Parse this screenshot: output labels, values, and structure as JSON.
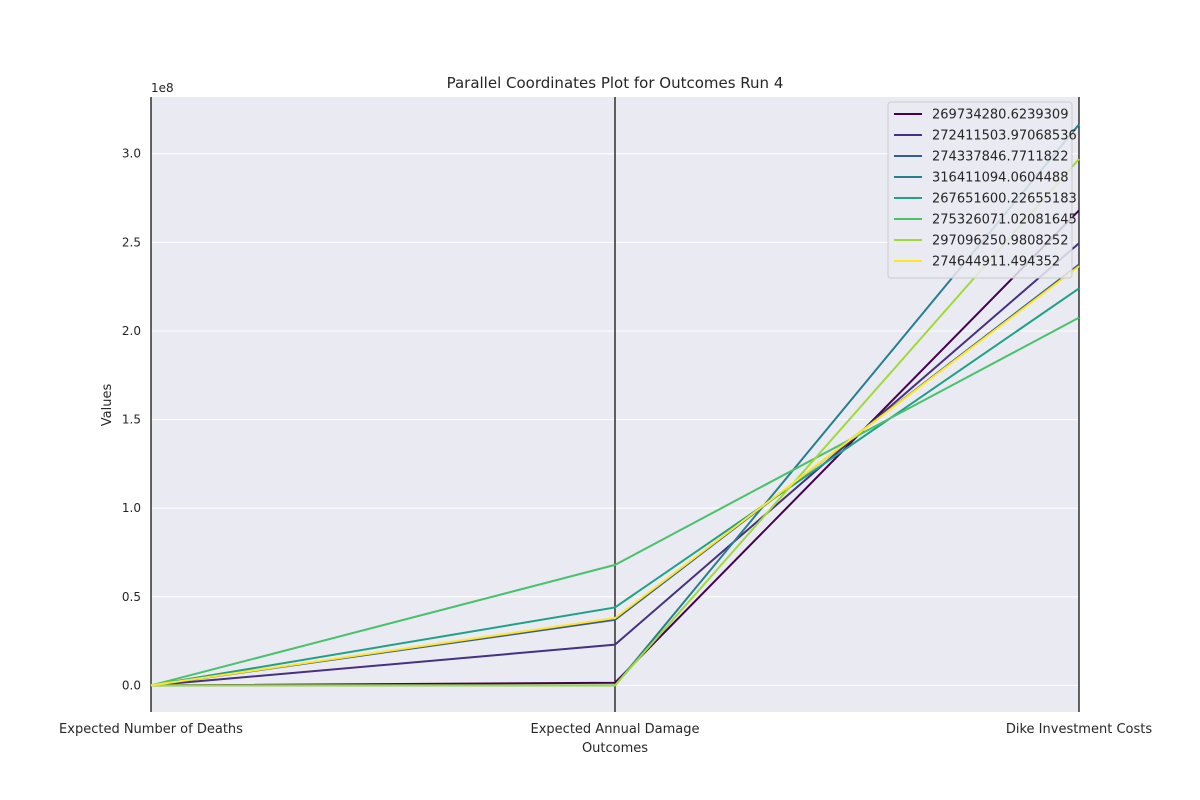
{
  "chart_data": {
    "type": "parallel_coordinates",
    "title": "Parallel Coordinates Plot for Outcomes Run 4",
    "xlabel": "Outcomes",
    "ylabel": "Values",
    "offset_text": "1e8",
    "categories": [
      "Expected Number of Deaths",
      "Expected Annual Damage",
      "Dike Investment Costs"
    ],
    "ylim": [
      -0.15,
      3.32
    ],
    "yticks": [
      0.0,
      0.5,
      1.0,
      1.5,
      2.0,
      2.5,
      3.0
    ],
    "ytick_labels": [
      "0.0",
      "0.5",
      "1.0",
      "1.5",
      "2.0",
      "2.5",
      "3.0"
    ],
    "grid": true,
    "legend_position": "top-right",
    "series": [
      {
        "name": "269734280.6239309",
        "color": "#440154",
        "values": [
          0.0,
          0.015,
          2.68
        ]
      },
      {
        "name": "272411503.97068536",
        "color": "#46327e",
        "values": [
          0.0,
          0.23,
          2.495
        ]
      },
      {
        "name": "274337846.7711822",
        "color": "#365c8d",
        "values": [
          0.0,
          0.37,
          2.375
        ]
      },
      {
        "name": "316411094.0604488",
        "color": "#277f8e",
        "values": [
          0.0,
          0.0,
          3.165
        ]
      },
      {
        "name": "267651600.22655183",
        "color": "#1fa187",
        "values": [
          0.0,
          0.44,
          2.24
        ]
      },
      {
        "name": "275326071.02081645",
        "color": "#4ac16d",
        "values": [
          0.0,
          0.68,
          2.075
        ]
      },
      {
        "name": "297096250.9808252",
        "color": "#a0da39",
        "values": [
          0.0,
          0.0,
          2.97
        ]
      },
      {
        "name": "274644911.494352",
        "color": "#fde725",
        "values": [
          0.0,
          0.38,
          2.365
        ]
      }
    ]
  }
}
